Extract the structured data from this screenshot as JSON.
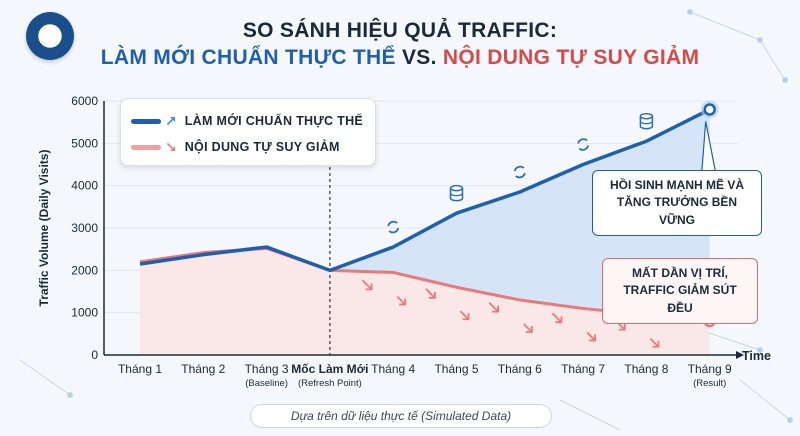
{
  "title": {
    "line1": "SO SÁNH HIỆU QUẢ TRAFFIC:",
    "line2_a": "LÀM MỚI CHUẨN THỰC THỂ",
    "line2_vs": "VS.",
    "line2_b": "NỘI DUNG TỰ SUY GIẢM"
  },
  "legend": {
    "item1": "LÀM MỚI CHUẨN THỰC THỂ",
    "item2": "NỘI DUNG TỰ SUY GIẢM"
  },
  "callouts": {
    "blue": [
      "HỒI SINH MẠNH MẼ VÀ",
      "TĂNG TRƯỞNG BỀN VỮNG"
    ],
    "red": [
      "MẤT DẦN VỊ TRÍ,",
      "TRAFFIC GIẢM SÚT ĐỀU"
    ]
  },
  "footer": "Dựa trên dữ liệu thực tế (Simulated Data)",
  "colors": {
    "blue": "#1f5fae",
    "red": "#e97a7a",
    "blue_fill": "#cfe2f6",
    "red_fill": "#fbe3e3"
  },
  "chart_data": {
    "type": "line",
    "categories": [
      "Tháng 1",
      "Tháng 2",
      "Tháng 3",
      "Mốc Làm Mới",
      "Tháng 4",
      "Tháng 5",
      "Tháng 6",
      "Tháng 7",
      "Tháng 8",
      "Tháng 9"
    ],
    "category_sublabels": [
      "",
      "",
      "(Baseline)",
      "(Refresh Point)",
      "",
      "",
      "",
      "",
      "",
      "(Result)"
    ],
    "series": [
      {
        "name": "LÀM MỚI CHUẨN THỰC THỂ",
        "values": [
          2150,
          2370,
          2550,
          2000,
          2550,
          3350,
          3850,
          4500,
          5050,
          5800
        ]
      },
      {
        "name": "NỘI DUNG TỰ SUY GIẢM",
        "values": [
          2200,
          2420,
          2520,
          2000,
          1950,
          1600,
          1300,
          1100,
          950,
          800
        ]
      }
    ],
    "ylabel": "Traffic Volume (Daily Visits)",
    "xlabel": "Time",
    "ylim": [
      0,
      6000
    ],
    "yticks": [
      0,
      1000,
      2000,
      3000,
      4000,
      5000,
      6000
    ],
    "refresh_index": 3,
    "grid": true,
    "legend": "top-left",
    "icons_blue": [
      {
        "index": 4,
        "icon": "refresh-icon"
      },
      {
        "index": 5,
        "icon": "database-icon"
      },
      {
        "index": 6,
        "icon": "refresh-icon"
      },
      {
        "index": 7,
        "icon": "refresh-icon"
      },
      {
        "index": 8,
        "icon": "database-icon"
      }
    ],
    "down_arrow_indices": [
      4,
      5,
      6,
      7,
      8
    ]
  }
}
